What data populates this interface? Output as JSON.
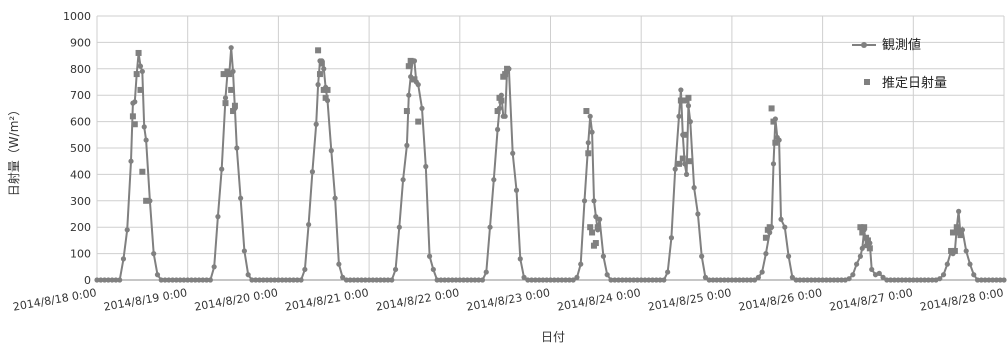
{
  "chart_data": {
    "type": "line",
    "xlabel": "日付",
    "ylabel": "日射量（W/m²）",
    "ylim": [
      0,
      1000
    ],
    "yticks": [
      0,
      100,
      200,
      300,
      400,
      500,
      600,
      700,
      800,
      900,
      1000
    ],
    "x_range_days": [
      0,
      10
    ],
    "x_tick_labels": [
      "2014/8/18 0:00",
      "2014/8/19 0:00",
      "2014/8/20 0:00",
      "2014/8/21 0:00",
      "2014/8/22 0:00",
      "2014/8/23 0:00",
      "2014/8/24 0:00",
      "2014/8/25 0:00",
      "2014/8/26 0:00",
      "2014/8/27 0:00",
      "2014/8/28 0:00"
    ],
    "grid": true,
    "legend_position": "top-right",
    "colors": {
      "observed": "#808080",
      "estimated": "#808080",
      "grid": "#cfcfcf",
      "axis": "#8c8c8c"
    },
    "series": [
      {
        "name": "観測値",
        "marker": "circle-line",
        "note_x": "x in hours of the day within the given date",
        "days": [
          {
            "date": "2014/8/18",
            "x": [
              6,
              7,
              8,
              9,
              9.5,
              10,
              10.5,
              11,
              11.5,
              12,
              12.5,
              13,
              14,
              15,
              16,
              17,
              18
            ],
            "y": [
              0,
              80,
              190,
              450,
              670,
              675,
              780,
              860,
              810,
              790,
              580,
              530,
              300,
              100,
              20,
              0,
              0
            ]
          },
          {
            "date": "2014/8/19",
            "x": [
              6,
              7,
              8,
              9,
              10,
              10.5,
              11,
              11.5,
              12,
              12.5,
              13,
              14,
              15,
              16,
              17,
              18
            ],
            "y": [
              0,
              50,
              240,
              420,
              690,
              780,
              780,
              880,
              790,
              650,
              500,
              310,
              110,
              20,
              0,
              0
            ]
          },
          {
            "date": "2014/8/20",
            "x": [
              6,
              7,
              8,
              9,
              10,
              10.5,
              11,
              11.5,
              12,
              12.5,
              13,
              14,
              15,
              16,
              17,
              18
            ],
            "y": [
              0,
              40,
              210,
              410,
              590,
              740,
              830,
              830,
              800,
              730,
              680,
              490,
              310,
              60,
              10,
              0
            ]
          },
          {
            "date": "2014/8/21",
            "x": [
              6,
              7,
              8,
              9,
              10,
              10.5,
              11,
              11.5,
              12,
              12.5,
              13,
              14,
              15,
              16,
              17,
              18
            ],
            "y": [
              0,
              40,
              200,
              380,
              510,
              700,
              770,
              830,
              830,
              750,
              740,
              650,
              430,
              90,
              40,
              0
            ]
          },
          {
            "date": "2014/8/22",
            "x": [
              6,
              7,
              8,
              9,
              10,
              10.5,
              11,
              11.5,
              12,
              12.5,
              13,
              14,
              15,
              16,
              17,
              18
            ],
            "y": [
              0,
              30,
              200,
              380,
              570,
              650,
              700,
              620,
              620,
              790,
              800,
              480,
              340,
              80,
              10,
              0
            ]
          },
          {
            "date": "2014/8/23",
            "x": [
              6,
              7,
              8,
              9,
              10,
              10.5,
              11,
              11.5,
              12,
              12.5,
              13,
              14,
              15,
              16,
              17,
              18
            ],
            "y": [
              0,
              10,
              60,
              300,
              520,
              620,
              560,
              300,
              240,
              190,
              230,
              90,
              20,
              0,
              0,
              0
            ]
          },
          {
            "date": "2014/8/24",
            "x": [
              6,
              7,
              8,
              9,
              10,
              10.5,
              11,
              11.5,
              12,
              12.5,
              13,
              14,
              15,
              16,
              17,
              18
            ],
            "y": [
              0,
              30,
              160,
              420,
              620,
              720,
              550,
              440,
              400,
              660,
              600,
              350,
              250,
              90,
              10,
              0
            ]
          },
          {
            "date": "2014/8/25",
            "x": [
              6,
              7,
              8,
              9,
              10,
              10.5,
              11,
              11.5,
              12,
              12.5,
              13,
              14,
              15,
              16,
              17,
              18
            ],
            "y": [
              0,
              10,
              30,
              100,
              180,
              200,
              440,
              610,
              540,
              530,
              230,
              200,
              90,
              10,
              0,
              0
            ]
          },
          {
            "date": "2014/8/26",
            "x": [
              6,
              7,
              8,
              9,
              10,
              10.5,
              11,
              11.5,
              12,
              12.5,
              13,
              14,
              15,
              16,
              17,
              18
            ],
            "y": [
              0,
              5,
              20,
              60,
              90,
              120,
              190,
              130,
              150,
              140,
              40,
              20,
              25,
              10,
              0,
              0
            ]
          },
          {
            "date": "2014/8/27",
            "x": [
              6,
              7,
              8,
              9,
              10,
              10.5,
              11,
              11.5,
              12,
              12.5,
              13,
              14,
              15,
              16,
              17,
              18
            ],
            "y": [
              0,
              5,
              20,
              60,
              110,
              100,
              110,
              200,
              260,
              170,
              190,
              110,
              60,
              20,
              0,
              0
            ]
          }
        ]
      },
      {
        "name": "推定日射量",
        "marker": "square",
        "days": [
          {
            "date": "2014/8/18",
            "x": [
              9.5,
              10,
              10.5,
              11,
              11.5,
              12,
              13
            ],
            "y": [
              620,
              590,
              780,
              860,
              720,
              410,
              300
            ]
          },
          {
            "date": "2014/8/19",
            "x": [
              9.5,
              10,
              10.5,
              11,
              11.5,
              12,
              12.5
            ],
            "y": [
              780,
              670,
              790,
              780,
              720,
              640,
              660
            ]
          },
          {
            "date": "2014/8/20",
            "x": [
              10.5,
              11,
              11.5,
              12,
              12.5,
              13
            ],
            "y": [
              870,
              780,
              820,
              720,
              690,
              720
            ]
          },
          {
            "date": "2014/8/21",
            "x": [
              10,
              10.5,
              11,
              11.5,
              12,
              13
            ],
            "y": [
              640,
              810,
              830,
              760,
              760,
              600
            ]
          },
          {
            "date": "2014/8/22",
            "x": [
              10,
              10.5,
              11,
              11.5,
              12,
              12.5
            ],
            "y": [
              640,
              690,
              680,
              770,
              780,
              800
            ]
          },
          {
            "date": "2014/8/23",
            "x": [
              9.5,
              10,
              10.5,
              11,
              11.5,
              12,
              12.5
            ],
            "y": [
              640,
              480,
              200,
              180,
              130,
              140,
              200
            ]
          },
          {
            "date": "2014/8/24",
            "x": [
              10,
              10.5,
              11,
              11.5,
              12,
              12.5,
              13
            ],
            "y": [
              440,
              680,
              460,
              550,
              680,
              690,
              450
            ]
          },
          {
            "date": "2014/8/25",
            "x": [
              9,
              9.5,
              10,
              10.5,
              11,
              11.5
            ],
            "y": [
              160,
              190,
              200,
              650,
              600,
              520
            ]
          },
          {
            "date": "2014/8/26",
            "x": [
              10,
              10.5,
              11,
              11.5,
              12,
              12.5
            ],
            "y": [
              200,
              180,
              200,
              160,
              150,
              120
            ]
          },
          {
            "date": "2014/8/27",
            "x": [
              10,
              10.5,
              11,
              11.5,
              12,
              12.5
            ],
            "y": [
              110,
              180,
              110,
              200,
              180,
              170
            ]
          }
        ]
      }
    ]
  }
}
